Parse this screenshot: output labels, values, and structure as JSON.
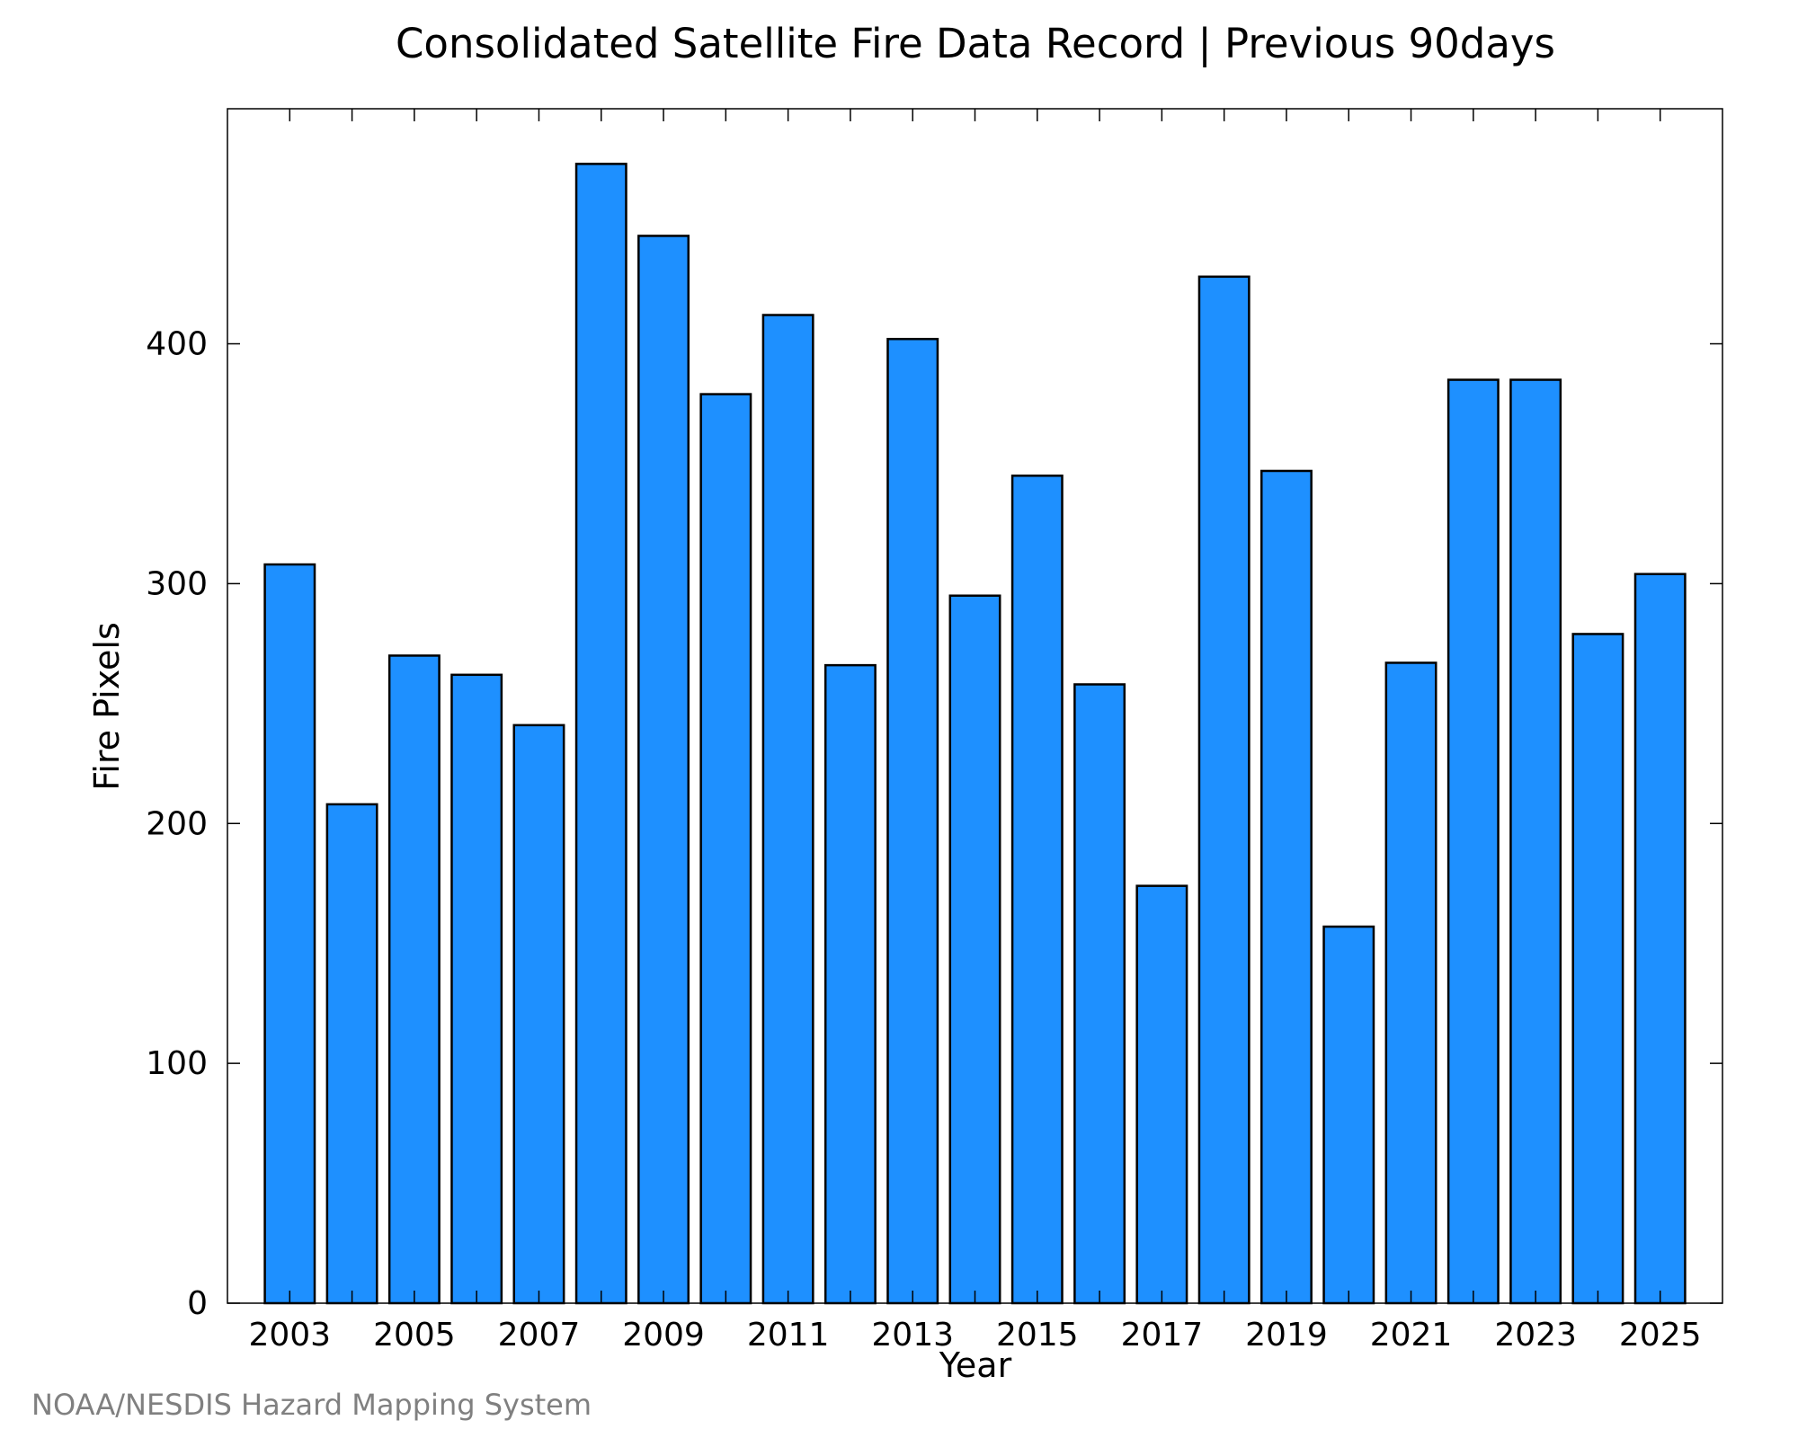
{
  "chart_data": {
    "type": "bar",
    "title": "Consolidated Satellite Fire Data Record | Previous 90days",
    "xlabel": "Year",
    "ylabel": "Fire Pixels",
    "credit": "NOAA/NESDIS Hazard Mapping System",
    "categories": [
      2003,
      2004,
      2005,
      2006,
      2007,
      2008,
      2009,
      2010,
      2011,
      2012,
      2013,
      2014,
      2015,
      2016,
      2017,
      2018,
      2019,
      2020,
      2021,
      2022,
      2023,
      2024,
      2025
    ],
    "values": [
      308,
      208,
      270,
      262,
      241,
      475,
      445,
      379,
      412,
      266,
      402,
      295,
      345,
      258,
      174,
      428,
      347,
      157,
      267,
      385,
      385,
      279,
      304
    ],
    "x_tick_labels": [
      "2003",
      "2005",
      "2007",
      "2009",
      "2011",
      "2013",
      "2015",
      "2017",
      "2019",
      "2021",
      "2023",
      "2025"
    ],
    "y_ticks": [
      0,
      100,
      200,
      300,
      400
    ],
    "ylim": [
      0,
      498
    ],
    "xlim": [
      2002,
      2026
    ],
    "grid": false,
    "bar_color": "#1e90ff",
    "edge_color": "#000000"
  }
}
